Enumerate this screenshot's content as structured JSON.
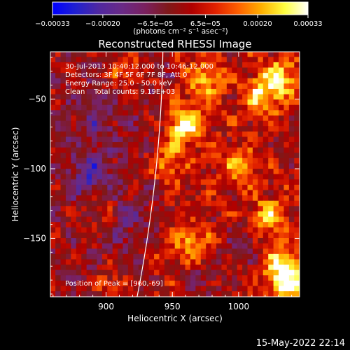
{
  "chart_data": {
    "type": "heatmap",
    "title": "Reconstructed RHESSI Image",
    "xlabel": "Heliocentric X (arcsec)",
    "ylabel": "Heliocentric Y (arcsec)",
    "xlim": [
      858,
      1046
    ],
    "ylim": [
      -192,
      -16
    ],
    "x_ticks": [
      900,
      950,
      1000
    ],
    "y_ticks": [
      -50,
      -100,
      -150
    ],
    "x_tick_labels": [
      "900",
      "950",
      "1000"
    ],
    "y_tick_labels": [
      "−50",
      "−100",
      "−150"
    ],
    "colorbar": {
      "ticks": [
        -0.00033,
        -0.0002,
        -6.5e-05,
        6.5e-05,
        0.0002,
        0.00033
      ],
      "tick_labels": [
        "−0.00033",
        "−0.00020",
        "−6.5e−05",
        "6.5e−05",
        "0.00020",
        "0.00033"
      ],
      "range": [
        -0.00033,
        0.00033
      ],
      "stops": [
        "#0000ff",
        "#2020d0",
        "#5028a0",
        "#6a2a86",
        "#7a205e",
        "#801818",
        "#b00000",
        "#e02000",
        "#ff6000",
        "#ffb000",
        "#ffff40",
        "#ffffff"
      ],
      "units": "(photons cm⁻² s⁻¹ asec⁻²)"
    },
    "grid": false,
    "limb_color": "#ffffff",
    "annotations": {
      "time_range": "30-Jul-2013 10:40:12.000 to 10:46:12.000",
      "detectors": "Detectors: 3F 4F 5F 6F 7F 8F, Att 0",
      "energy_range": "Energy Range: 25.0 - 50.0 keV",
      "clean_counts": "Clean    Total counts: 9.19E+03",
      "peak_position": "Position of Peak = [960,-69]"
    },
    "sources": [
      {
        "x": 960,
        "y": -69,
        "amplitude": 1.0
      },
      {
        "x": 1018,
        "y": -48,
        "amplitude": 0.8
      },
      {
        "x": 1032,
        "y": -34,
        "amplitude": 0.75
      },
      {
        "x": 975,
        "y": -37,
        "amplitude": 0.65
      },
      {
        "x": 945,
        "y": -95,
        "amplitude": 0.55
      },
      {
        "x": 1000,
        "y": -98,
        "amplitude": 0.55
      },
      {
        "x": 1022,
        "y": -135,
        "amplitude": 0.7
      },
      {
        "x": 965,
        "y": -155,
        "amplitude": 0.6
      },
      {
        "x": 1032,
        "y": -170,
        "amplitude": 0.75
      },
      {
        "x": 915,
        "y": -30,
        "amplitude": 0.45
      },
      {
        "x": 898,
        "y": -130,
        "amplitude": 0.45
      },
      {
        "x": 1038,
        "y": -185,
        "amplitude": 0.9
      },
      {
        "x": 905,
        "y": -185,
        "amplitude": 0.4
      }
    ],
    "negative_regions": [
      {
        "x": 888,
        "y": -105,
        "amplitude": -0.6
      },
      {
        "x": 910,
        "y": -135,
        "amplitude": -0.4
      },
      {
        "x": 893,
        "y": -65,
        "amplitude": -0.35
      },
      {
        "x": 975,
        "y": -178,
        "amplitude": -0.3
      },
      {
        "x": 1005,
        "y": -152,
        "amplitude": -0.3
      }
    ]
  },
  "footer": {
    "date_stamp": "15-May-2022 22:14"
  }
}
